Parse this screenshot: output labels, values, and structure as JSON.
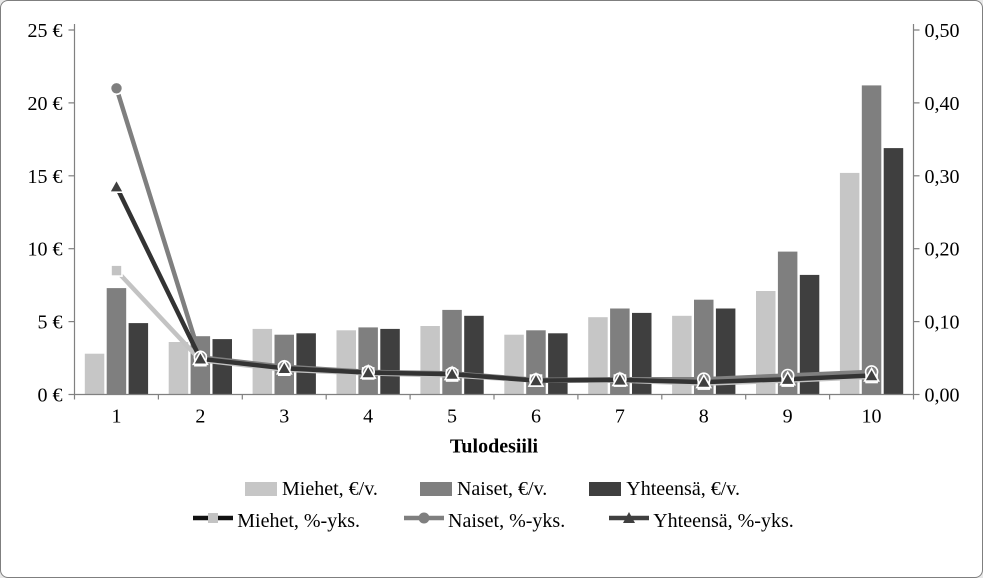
{
  "figure": {
    "border_color": "#7f7f7f",
    "background": "#ffffff"
  },
  "chart_data": {
    "type": "bar+line",
    "categories": [
      "1",
      "2",
      "3",
      "4",
      "5",
      "6",
      "7",
      "8",
      "9",
      "10"
    ],
    "xlabel": "Tulodesiili",
    "grid": false,
    "left_axis": {
      "min": 0,
      "max": 25,
      "tick_values": [
        0,
        5,
        10,
        15,
        20,
        25
      ],
      "tick_labels": [
        "0 €",
        "5 €",
        "10 €",
        "15 €",
        "20 €",
        "25 €"
      ]
    },
    "right_axis": {
      "min": 0,
      "max": 0.5,
      "tick_values": [
        0,
        0.1,
        0.2,
        0.3,
        0.4,
        0.5
      ],
      "tick_labels": [
        "0,00",
        "0,10",
        "0,20",
        "0,30",
        "0,40",
        "0,50"
      ]
    },
    "bar_series": [
      {
        "name": "Miehet, €/v.",
        "color": "#c6c6c6",
        "values": [
          2.8,
          3.6,
          4.5,
          4.4,
          4.7,
          4.1,
          5.3,
          5.4,
          7.1,
          15.2
        ]
      },
      {
        "name": "Naiset, €/v.",
        "color": "#7f7f7f",
        "values": [
          7.3,
          4.0,
          4.1,
          4.6,
          5.8,
          4.4,
          5.9,
          6.5,
          9.8,
          21.2
        ]
      },
      {
        "name": "Yhteensä, €/v.",
        "color": "#3f3f3f",
        "values": [
          4.9,
          3.8,
          4.2,
          4.5,
          5.4,
          4.2,
          5.6,
          5.9,
          8.2,
          16.9
        ]
      }
    ],
    "line_series": [
      {
        "name": "Miehet, %-yks.",
        "color": "#c3c3c3",
        "legend_line_color": "#111111",
        "marker": "square",
        "marker_color": "#c3c3c3",
        "values": [
          0.17,
          0.047,
          0.034,
          0.029,
          0.026,
          0.019,
          0.019,
          0.015,
          0.019,
          0.024
        ]
      },
      {
        "name": "Naiset, %-yks.",
        "color": "#7f7f7f",
        "legend_line_color": "#7f7f7f",
        "marker": "circle",
        "marker_color": "#7f7f7f",
        "values": [
          0.42,
          0.051,
          0.038,
          0.031,
          0.029,
          0.02,
          0.021,
          0.021,
          0.026,
          0.031
        ]
      },
      {
        "name": "Yhteensä, %-yks.",
        "color": "#333333",
        "legend_line_color": "#404040",
        "marker": "triangle",
        "marker_color": "#3f3f3f",
        "values": [
          0.285,
          0.049,
          0.036,
          0.03,
          0.028,
          0.019,
          0.02,
          0.017,
          0.021,
          0.026
        ]
      }
    ],
    "axis_color": "#808080",
    "legend_position": "bottom"
  }
}
